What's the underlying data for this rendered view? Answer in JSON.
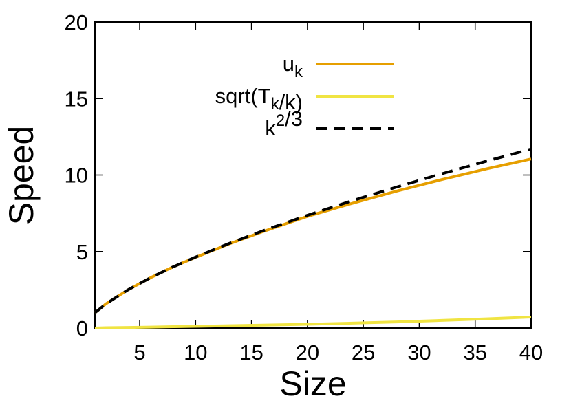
{
  "chart_data": {
    "type": "line",
    "x_label": "Size",
    "y_label": "Speed",
    "x": [
      1,
      2,
      4,
      6,
      8,
      10,
      13,
      16,
      20,
      24,
      28,
      32,
      36,
      40
    ],
    "series": [
      {
        "name": "u_k",
        "color": "#e69f00",
        "dash": false,
        "values": [
          1,
          1.59,
          2.52,
          3.3,
          4.0,
          4.62,
          5.5,
          6.3,
          7.3,
          8.15,
          8.95,
          9.7,
          10.4,
          11.05
        ]
      },
      {
        "name": "sqrt(T_k/k)",
        "color": "#f0e442",
        "dash": false,
        "values": [
          0,
          0.02,
          0.04,
          0.06,
          0.09,
          0.11,
          0.15,
          0.19,
          0.25,
          0.32,
          0.4,
          0.5,
          0.6,
          0.72
        ]
      },
      {
        "name": "k^2/3",
        "color": "#000000",
        "dash": true,
        "values": [
          1,
          1.59,
          2.52,
          3.3,
          4.0,
          4.64,
          5.53,
          6.35,
          7.37,
          8.32,
          9.22,
          10.08,
          10.9,
          11.7
        ]
      }
    ],
    "xlim": [
      1,
      40
    ],
    "xticks": [
      5,
      10,
      15,
      20,
      25,
      30,
      35,
      40
    ],
    "ylim": [
      0,
      20
    ],
    "yticks": [
      0,
      5,
      10,
      15,
      20
    ],
    "legend": "top-right",
    "grid": false
  }
}
